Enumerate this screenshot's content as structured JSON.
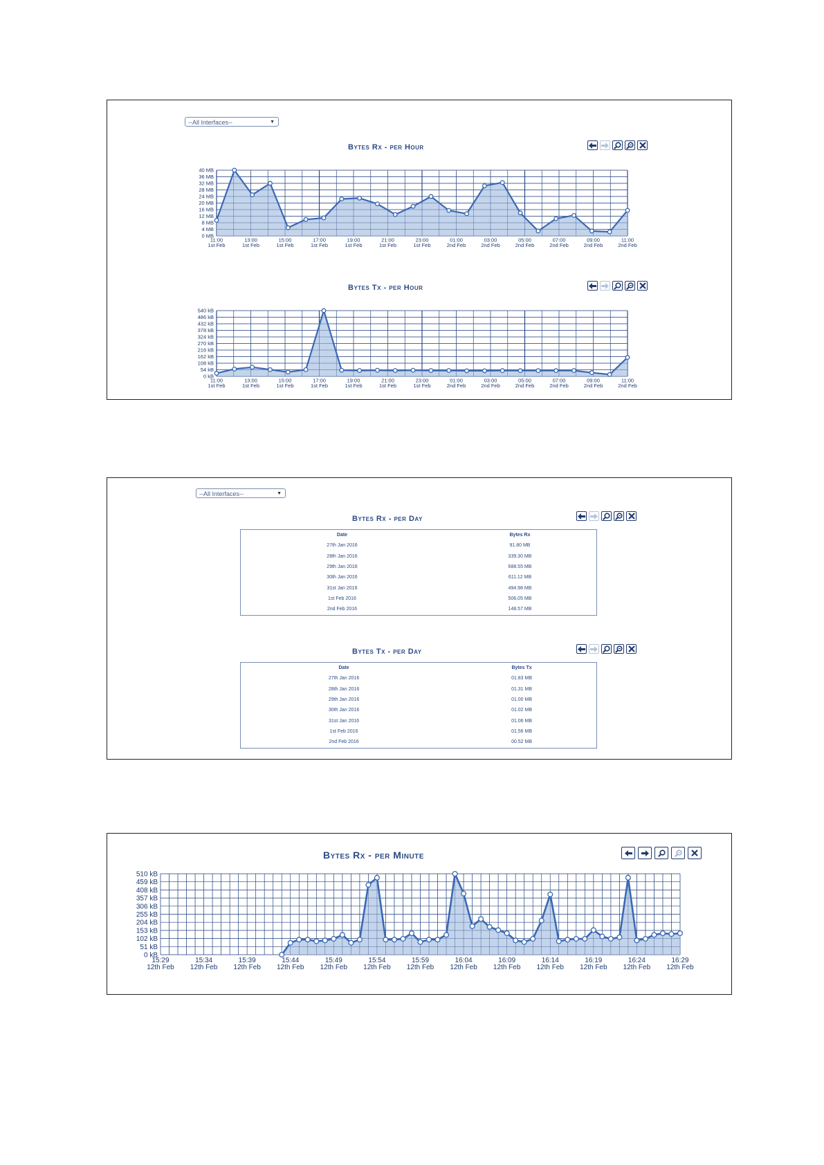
{
  "colors": {
    "line": "#3a68b2",
    "fill": "#b9cde8",
    "grid": "#2c4a85",
    "text": "#1f3a6e"
  },
  "toolbar_icons": [
    "arrow-left-icon",
    "arrow-right-icon",
    "zoom-in-icon",
    "zoom-out-icon",
    "close-icon"
  ],
  "panel1": {
    "interface_select": {
      "value": "--All Interfaces--"
    },
    "rx_chart": {
      "title": "Bytes Rx - per Hour",
      "chart_data": {
        "type": "area",
        "x_ticks": [
          [
            "11:00",
            "1st Feb"
          ],
          [
            "13:00",
            "1st Feb"
          ],
          [
            "15:00",
            "1st Feb"
          ],
          [
            "17:00",
            "1st Feb"
          ],
          [
            "19:00",
            "1st Feb"
          ],
          [
            "21:00",
            "1st Feb"
          ],
          [
            "23:00",
            "1st Feb"
          ],
          [
            "01:00",
            "2nd Feb"
          ],
          [
            "03:00",
            "2nd Feb"
          ],
          [
            "05:00",
            "2nd Feb"
          ],
          [
            "07:00",
            "2nd Feb"
          ],
          [
            "09:00",
            "2nd Feb"
          ],
          [
            "11:00",
            "2nd Feb"
          ]
        ],
        "y_ticks": [
          "40 MB",
          "36 MB",
          "32 MB",
          "28 MB",
          "24 MB",
          "20 MB",
          "16 MB",
          "12 MB",
          "8 MB",
          "4 MB",
          "0 MB"
        ],
        "ylim": [
          0,
          40
        ],
        "unit": "MB",
        "values": [
          9.5,
          40,
          25,
          32,
          5,
          10,
          11,
          22.5,
          23,
          19.5,
          13,
          18,
          24,
          15.5,
          13.5,
          30.5,
          32.5,
          14,
          3,
          10.5,
          12.5,
          3,
          2.5,
          15.5
        ]
      }
    },
    "tx_chart": {
      "title": "Bytes Tx - per Hour",
      "chart_data": {
        "type": "area",
        "x_ticks": [
          [
            "11:00",
            "1st Feb"
          ],
          [
            "13:00",
            "1st Feb"
          ],
          [
            "15:00",
            "1st Feb"
          ],
          [
            "17:00",
            "1st Feb"
          ],
          [
            "19:00",
            "1st Feb"
          ],
          [
            "21:00",
            "1st Feb"
          ],
          [
            "23:00",
            "1st Feb"
          ],
          [
            "01:00",
            "2nd Feb"
          ],
          [
            "03:00",
            "2nd Feb"
          ],
          [
            "05:00",
            "2nd Feb"
          ],
          [
            "07:00",
            "2nd Feb"
          ],
          [
            "09:00",
            "2nd Feb"
          ],
          [
            "11:00",
            "2nd Feb"
          ]
        ],
        "y_ticks": [
          "540 kB",
          "486 kB",
          "432 kB",
          "378 kB",
          "324 kB",
          "270 kB",
          "216 kB",
          "162 kB",
          "108 kB",
          "54 kB",
          "0 kB"
        ],
        "ylim": [
          0,
          540
        ],
        "unit": "kB",
        "values": [
          25,
          60,
          75,
          55,
          35,
          55,
          540,
          50,
          48,
          50,
          48,
          50,
          48,
          48,
          46,
          46,
          47,
          47,
          47,
          47,
          48,
          30,
          15,
          155
        ]
      }
    }
  },
  "panel2": {
    "interface_select": {
      "value": "--All Interfaces--"
    },
    "rx_table": {
      "title": "Bytes Rx - per Day",
      "headers": [
        "Date",
        "Bytes Rx"
      ],
      "rows": [
        [
          "27th Jan 2016",
          "91.80 MB"
        ],
        [
          "28th Jan 2016",
          "339.30 MB"
        ],
        [
          "29th Jan 2016",
          "688.55 MB"
        ],
        [
          "30th Jan 2016",
          "611.12 MB"
        ],
        [
          "31st Jan 2016",
          "494.98 MB"
        ],
        [
          "1st Feb 2016",
          "506.05 MB"
        ],
        [
          "2nd Feb 2016",
          "148.57 MB"
        ]
      ]
    },
    "tx_table": {
      "title": "Bytes Tx - per Day",
      "headers": [
        "Date",
        "Bytes Tx"
      ],
      "rows": [
        [
          "27th Jan 2016",
          "01.83 MB"
        ],
        [
          "28th Jan 2016",
          "01.31 MB"
        ],
        [
          "29th Jan 2016",
          "01.00 MB"
        ],
        [
          "30th Jan 2016",
          "01.02 MB"
        ],
        [
          "31st Jan 2016",
          "01.06 MB"
        ],
        [
          "1st Feb 2016",
          "01.56 MB"
        ],
        [
          "2nd Feb 2016",
          "00.52 MB"
        ]
      ]
    }
  },
  "panel3": {
    "rx_chart": {
      "title": "Bytes Rx - per Minute",
      "chart_data": {
        "type": "area",
        "x_ticks": [
          [
            "15:29",
            "12th Feb"
          ],
          [
            "15:34",
            "12th Feb"
          ],
          [
            "15:39",
            "12th Feb"
          ],
          [
            "15:44",
            "12th Feb"
          ],
          [
            "15:49",
            "12th Feb"
          ],
          [
            "15:54",
            "12th Feb"
          ],
          [
            "15:59",
            "12th Feb"
          ],
          [
            "16:04",
            "12th Feb"
          ],
          [
            "16:09",
            "12th Feb"
          ],
          [
            "16:14",
            "12th Feb"
          ],
          [
            "16:19",
            "12th Feb"
          ],
          [
            "16:24",
            "12th Feb"
          ],
          [
            "16:29",
            "12th Feb"
          ]
        ],
        "y_ticks": [
          "510 kB",
          "459 kB",
          "408 kB",
          "357 kB",
          "306 kB",
          "255 kB",
          "204 kB",
          "153 kB",
          "102 kB",
          "51 kB",
          "0 kB"
        ],
        "ylim": [
          0,
          510
        ],
        "unit": "kB",
        "values": [
          null,
          null,
          null,
          null,
          null,
          null,
          null,
          null,
          null,
          null,
          null,
          null,
          null,
          null,
          0,
          75,
          95,
          95,
          85,
          90,
          100,
          125,
          75,
          95,
          440,
          485,
          95,
          95,
          100,
          135,
          80,
          95,
          95,
          125,
          510,
          385,
          180,
          225,
          175,
          155,
          135,
          90,
          80,
          100,
          215,
          380,
          85,
          95,
          100,
          100,
          155,
          115,
          100,
          110,
          485,
          90,
          100,
          125,
          135,
          130,
          135
        ]
      }
    }
  }
}
